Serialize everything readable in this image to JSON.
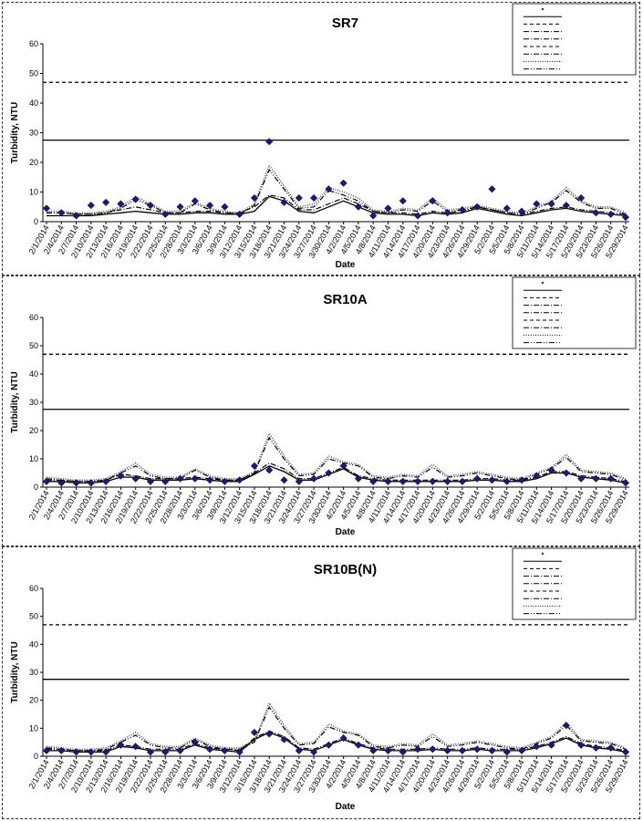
{
  "chart_data": [
    {
      "type": "line",
      "title": "SR7",
      "xlabel": "Date",
      "ylabel": "Turbidity, NTU",
      "ylim": [
        0,
        60
      ],
      "yticks": [
        0,
        10,
        20,
        30,
        40,
        50,
        60
      ],
      "legend_position": "top-right",
      "reference_lines": [
        {
          "y": 27.5,
          "style": "solid"
        },
        {
          "y": 47,
          "style": "dashed"
        }
      ],
      "x": [
        "2/1/2014",
        "2/4/2014",
        "2/7/2014",
        "2/10/2014",
        "2/13/2014",
        "2/16/2014",
        "2/19/2014",
        "2/22/2014",
        "2/25/2014",
        "2/28/2014",
        "3/3/2014",
        "3/6/2014",
        "3/9/2014",
        "3/12/2014",
        "3/15/2014",
        "3/18/2014",
        "3/21/2014",
        "3/24/2014",
        "3/27/2014",
        "3/30/2014",
        "4/2/2014",
        "4/5/2014",
        "4/8/2014",
        "4/11/2014",
        "4/14/2014",
        "4/17/2014",
        "4/20/2014",
        "4/23/2014",
        "4/26/2014",
        "4/29/2014",
        "5/2/2014",
        "5/5/2014",
        "5/8/2014",
        "5/11/2014",
        "5/14/2014",
        "5/17/2014",
        "5/20/2014",
        "5/23/2014",
        "5/26/2014",
        "5/29/2014"
      ],
      "series": [
        {
          "style": "markers",
          "values": [
            4.5,
            3,
            2,
            5.5,
            6.5,
            6,
            7.5,
            5.5,
            2.5,
            5,
            7,
            5.5,
            5,
            2.5,
            8,
            27,
            6.5,
            8,
            8,
            11,
            13,
            5,
            2,
            4.5,
            7,
            2,
            7,
            3,
            4,
            5,
            11,
            4.5,
            3.5,
            6,
            6,
            5.5,
            8,
            3,
            2.5,
            1.5
          ]
        },
        {
          "style": "solid",
          "values": [
            2,
            2,
            2,
            2,
            2.5,
            3,
            3.5,
            3,
            2.5,
            2.5,
            3,
            3,
            2.5,
            2.5,
            3.5,
            8.5,
            7,
            3.5,
            3,
            5,
            7,
            5,
            3,
            2.5,
            2.5,
            2,
            3,
            2.5,
            3,
            4.5,
            3.5,
            2.5,
            2,
            3,
            4,
            4.5,
            3.5,
            3,
            2.5,
            2
          ]
        },
        {
          "style": "dash-dot",
          "values": [
            3,
            3,
            2.5,
            2.5,
            3,
            4,
            5,
            4,
            3,
            3,
            3.5,
            3.5,
            3,
            3,
            5,
            9,
            8,
            4,
            4,
            6,
            8,
            6,
            3.5,
            3,
            3,
            2.5,
            3.5,
            3,
            3.5,
            5,
            4,
            3,
            2.5,
            3.5,
            4.5,
            5,
            4,
            3.5,
            3,
            2.5
          ]
        },
        {
          "style": "dotted",
          "values": [
            3.5,
            3.5,
            3,
            3,
            3.5,
            5,
            8.5,
            6,
            3.5,
            3.5,
            6.5,
            4.5,
            3.5,
            3,
            6,
            19,
            12,
            5,
            6,
            11.5,
            10,
            8,
            4,
            3.5,
            4.5,
            4,
            8,
            4,
            4.5,
            5.5,
            4.5,
            3.5,
            3,
            5,
            7,
            11.5,
            7,
            5,
            5,
            3
          ]
        },
        {
          "style": "dash-dot-dot",
          "values": [
            3,
            3,
            2.5,
            2.5,
            3,
            4.5,
            7.5,
            5.5,
            3,
            3,
            6,
            4,
            3,
            2.5,
            5.5,
            17.5,
            11,
            4.5,
            5,
            10.5,
            9,
            7,
            3.5,
            3,
            4,
            3.5,
            7,
            3.5,
            4,
            5,
            4,
            3,
            2.5,
            4.5,
            6.5,
            10.5,
            6.5,
            4.5,
            4.5,
            2.5
          ]
        }
      ]
    },
    {
      "type": "line",
      "title": "SR10A",
      "xlabel": "Date",
      "ylabel": "Turbidity, NTU",
      "ylim": [
        0,
        60
      ],
      "yticks": [
        0,
        10,
        20,
        30,
        40,
        50,
        60
      ],
      "legend_position": "top-right",
      "reference_lines": [
        {
          "y": 27.5,
          "style": "solid"
        },
        {
          "y": 47,
          "style": "dashed"
        }
      ],
      "x": [
        "2/1/2014",
        "2/4/2014",
        "2/7/2014",
        "2/10/2014",
        "2/13/2014",
        "2/16/2014",
        "2/19/2014",
        "2/22/2014",
        "2/25/2014",
        "2/28/2014",
        "3/3/2014",
        "3/6/2014",
        "3/9/2014",
        "3/12/2014",
        "3/15/2014",
        "3/18/2014",
        "3/21/2014",
        "3/24/2014",
        "3/27/2014",
        "3/30/2014",
        "4/2/2014",
        "4/5/2014",
        "4/8/2014",
        "4/11/2014",
        "4/14/2014",
        "4/17/2014",
        "4/20/2014",
        "4/23/2014",
        "4/26/2014",
        "4/29/2014",
        "5/2/2014",
        "5/5/2014",
        "5/8/2014",
        "5/11/2014",
        "5/14/2014",
        "5/17/2014",
        "5/20/2014",
        "5/23/2014",
        "5/26/2014",
        "5/29/2014"
      ],
      "series": [
        {
          "style": "markers",
          "values": [
            2,
            1.5,
            1.5,
            1.5,
            2,
            4,
            3,
            2,
            2,
            3,
            3,
            2.5,
            2,
            2.5,
            7.5,
            6,
            2.5,
            2,
            3,
            5,
            7.5,
            3,
            2,
            2,
            2,
            2,
            2,
            2,
            2,
            3,
            2.5,
            2,
            2.5,
            4,
            6,
            5,
            3,
            3,
            3,
            1.5
          ]
        },
        {
          "style": "solid",
          "values": [
            2,
            2,
            1.5,
            1.5,
            2,
            3.5,
            3.5,
            2.5,
            2.5,
            2.5,
            3,
            2.5,
            2,
            2,
            4.5,
            7.5,
            5.5,
            2.5,
            2.5,
            4.5,
            6.5,
            3.5,
            2.5,
            2,
            2,
            2,
            2,
            2,
            2,
            2.5,
            2.5,
            2,
            2,
            3,
            5,
            5,
            3.5,
            3,
            2.5,
            1.5
          ]
        },
        {
          "style": "dash-dot",
          "values": [
            2.5,
            2.5,
            2,
            2,
            2.5,
            4.5,
            4,
            3,
            3,
            3,
            3.5,
            3,
            2.5,
            2.5,
            5,
            8.5,
            6.5,
            3,
            3,
            5,
            7,
            4,
            3,
            2.5,
            2.5,
            2.5,
            2.5,
            2.5,
            2.5,
            3,
            3,
            2.5,
            2.5,
            3.5,
            5.5,
            5.5,
            4,
            3.5,
            3,
            2
          ]
        },
        {
          "style": "dotted",
          "values": [
            3.5,
            3,
            2.5,
            2.5,
            3,
            5.5,
            8.5,
            4.5,
            3.5,
            3.5,
            6.5,
            4,
            3,
            3,
            5.5,
            19,
            11,
            4.5,
            5,
            11,
            9,
            8,
            4,
            3.5,
            4.5,
            4,
            8,
            4,
            4.5,
            5.5,
            4.5,
            3.5,
            3,
            5,
            7,
            11.5,
            6,
            5.5,
            5,
            3
          ]
        },
        {
          "style": "dash-dot-dot",
          "values": [
            3,
            2.5,
            2,
            2,
            2.5,
            5,
            7.5,
            4,
            3,
            3,
            6,
            3.5,
            2.5,
            2.5,
            5,
            17.5,
            10,
            4,
            4.5,
            10,
            8.5,
            7.5,
            3.5,
            3,
            4,
            3.5,
            7,
            3.5,
            4,
            5,
            4,
            3,
            2.5,
            4.5,
            6.5,
            10.5,
            5.5,
            5,
            4.5,
            2.5
          ]
        }
      ]
    },
    {
      "type": "line",
      "title": "SR10B(N)",
      "xlabel": "Date",
      "ylabel": "Turbidity, NTU",
      "ylim": [
        0,
        60
      ],
      "yticks": [
        0,
        10,
        20,
        30,
        40,
        50,
        60
      ],
      "legend_position": "top-right",
      "reference_lines": [
        {
          "y": 27.5,
          "style": "solid"
        },
        {
          "y": 47,
          "style": "dashed"
        }
      ],
      "x": [
        "2/1/2014",
        "2/4/2014",
        "2/7/2014",
        "2/10/2014",
        "2/13/2014",
        "2/16/2014",
        "2/19/2014",
        "2/22/2014",
        "2/25/2014",
        "2/28/2014",
        "3/3/2014",
        "3/6/2014",
        "3/9/2014",
        "3/12/2014",
        "3/15/2014",
        "3/18/2014",
        "3/21/2014",
        "3/24/2014",
        "3/27/2014",
        "3/30/2014",
        "4/2/2014",
        "4/5/2014",
        "4/8/2014",
        "4/11/2014",
        "4/14/2014",
        "4/17/2014",
        "4/20/2014",
        "4/23/2014",
        "4/26/2014",
        "4/29/2014",
        "5/2/2014",
        "5/5/2014",
        "5/8/2014",
        "5/11/2014",
        "5/14/2014",
        "5/17/2014",
        "5/20/2014",
        "5/23/2014",
        "5/26/2014",
        "5/29/2014"
      ],
      "series": [
        {
          "style": "markers",
          "values": [
            2,
            2,
            1.5,
            1.5,
            1.5,
            4,
            3.5,
            1.5,
            1.5,
            2,
            5,
            2.5,
            2,
            1.5,
            8.5,
            8,
            6,
            2,
            1.5,
            4,
            6.5,
            4,
            2,
            2,
            1.5,
            2.5,
            2.5,
            2,
            2,
            2.5,
            2,
            1.5,
            2,
            3.5,
            4,
            11,
            4,
            3,
            3,
            1.5
          ]
        },
        {
          "style": "solid",
          "values": [
            2,
            2,
            1.5,
            1.5,
            1.5,
            3.5,
            3,
            2,
            2,
            2,
            4,
            2.5,
            2,
            1.5,
            6,
            8.5,
            6.5,
            2.5,
            2,
            4,
            6,
            4,
            2.5,
            2,
            2,
            2,
            2.5,
            2,
            2,
            2.5,
            2,
            2,
            2,
            3,
            4.5,
            6.5,
            4,
            3,
            2.5,
            1.5
          ]
        },
        {
          "style": "dash-dot",
          "values": [
            2.5,
            2.5,
            2,
            2,
            2,
            4,
            3.5,
            2.5,
            2.5,
            2.5,
            4.5,
            3,
            2.5,
            2,
            6.5,
            9,
            7,
            3,
            2.5,
            4.5,
            6.5,
            4.5,
            3,
            2.5,
            2.5,
            2.5,
            3,
            2.5,
            2.5,
            3,
            2.5,
            2.5,
            2.5,
            3.5,
            5,
            7,
            4.5,
            3.5,
            3,
            2
          ]
        },
        {
          "style": "dotted",
          "values": [
            3.5,
            3,
            2.5,
            2.5,
            3,
            5.5,
            8.5,
            4.5,
            3.5,
            3.5,
            6.5,
            4,
            3,
            3,
            5.5,
            19,
            11,
            4.5,
            5,
            11.5,
            9,
            8,
            4,
            3.5,
            4.5,
            4,
            8,
            4,
            4.5,
            5.5,
            4.5,
            3.5,
            3,
            5,
            7,
            12,
            6,
            5.5,
            5,
            3
          ]
        },
        {
          "style": "dash-dot-dot",
          "values": [
            3,
            2.5,
            2,
            2,
            2.5,
            5,
            7.5,
            4,
            3,
            3,
            6,
            3.5,
            2.5,
            2.5,
            5,
            17.5,
            10,
            4,
            4.5,
            10.5,
            8.5,
            7.5,
            3.5,
            3,
            4,
            3.5,
            7,
            3.5,
            4,
            5,
            4,
            3,
            2.5,
            4.5,
            6.5,
            11,
            5.5,
            5,
            4.5,
            2.5
          ]
        }
      ]
    }
  ]
}
